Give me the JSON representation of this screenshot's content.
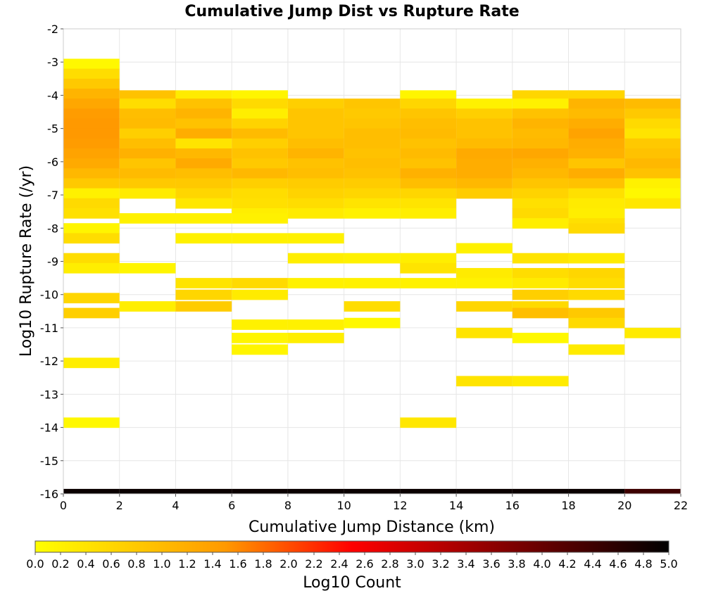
{
  "chart_data": {
    "type": "heatmap",
    "title": "Cumulative Jump Dist vs Rupture Rate",
    "xlabel": "Cumulative Jump Distance (km)",
    "ylabel": "Log10 Rupture Rate (/yr)",
    "xlim": [
      0,
      22
    ],
    "ylim": [
      -16,
      -2
    ],
    "x_ticks": [
      "0",
      "2",
      "4",
      "6",
      "8",
      "10",
      "12",
      "14",
      "16",
      "18",
      "20",
      "22"
    ],
    "y_ticks": [
      "-2",
      "-3",
      "-4",
      "-5",
      "-6",
      "-7",
      "-8",
      "-9",
      "-10",
      "-11",
      "-12",
      "-13",
      "-14",
      "-15",
      "-16"
    ],
    "grid": true,
    "x_bin_width": 2,
    "y_bin_height": 0.3,
    "colorbar": {
      "label": "Log10 Count",
      "range": [
        0,
        5
      ],
      "ticks": [
        "0.0",
        "0.2",
        "0.4",
        "0.6",
        "0.8",
        "1.0",
        "1.2",
        "1.4",
        "1.6",
        "1.8",
        "2.0",
        "2.2",
        "2.4",
        "2.6",
        "2.8",
        "3.0",
        "3.2",
        "3.4",
        "3.6",
        "3.8",
        "4.0",
        "4.2",
        "4.4",
        "4.6",
        "4.8",
        "5.0"
      ],
      "colors": [
        "#ffff00",
        "#ff9900",
        "#ff0000",
        "#000000"
      ]
    },
    "columns": [
      {
        "x": 1,
        "cells": [
          [
            -3.05,
            0.1
          ],
          [
            -3.35,
            0.5
          ],
          [
            -3.65,
            0.8
          ],
          [
            -3.95,
            1.1
          ],
          [
            -4.25,
            1.3
          ],
          [
            -4.55,
            1.45
          ],
          [
            -4.85,
            1.5
          ],
          [
            -5.15,
            1.5
          ],
          [
            -5.45,
            1.45
          ],
          [
            -5.75,
            1.35
          ],
          [
            -6.05,
            1.25
          ],
          [
            -6.35,
            1.05
          ],
          [
            -6.65,
            0.8
          ],
          [
            -6.95,
            0.2
          ],
          [
            -7.25,
            0.55
          ],
          [
            -7.55,
            0.45
          ],
          [
            -8.0,
            0.15
          ],
          [
            -8.3,
            0.5
          ],
          [
            -8.9,
            0.5
          ],
          [
            -9.2,
            0.25
          ],
          [
            -10.1,
            0.6
          ],
          [
            -10.55,
            0.7
          ],
          [
            -12.05,
            0.25
          ],
          [
            -13.85,
            0.1
          ]
        ]
      },
      {
        "x": 3,
        "cells": [
          [
            -4.0,
            0.9
          ],
          [
            -4.25,
            0.5
          ],
          [
            -4.55,
            0.95
          ],
          [
            -4.85,
            1.0
          ],
          [
            -5.15,
            0.7
          ],
          [
            -5.45,
            0.95
          ],
          [
            -5.75,
            1.15
          ],
          [
            -6.05,
            0.85
          ],
          [
            -6.35,
            1.0
          ],
          [
            -6.65,
            0.8
          ],
          [
            -6.95,
            0.3
          ],
          [
            -7.7,
            0.2
          ],
          [
            -9.2,
            0.15
          ],
          [
            -10.35,
            0.25
          ]
        ]
      },
      {
        "x": 5,
        "cells": [
          [
            -4.0,
            0.3
          ],
          [
            -4.25,
            0.9
          ],
          [
            -4.55,
            1.1
          ],
          [
            -4.85,
            0.9
          ],
          [
            -5.15,
            1.2
          ],
          [
            -5.45,
            0.4
          ],
          [
            -5.75,
            1.05
          ],
          [
            -6.05,
            1.25
          ],
          [
            -6.35,
            0.95
          ],
          [
            -6.65,
            0.8
          ],
          [
            -6.95,
            0.6
          ],
          [
            -7.25,
            0.35
          ],
          [
            -7.7,
            0.2
          ],
          [
            -8.3,
            0.2
          ],
          [
            -9.65,
            0.4
          ],
          [
            -10.0,
            0.6
          ],
          [
            -10.35,
            0.75
          ]
        ]
      },
      {
        "x": 7,
        "cells": [
          [
            -4.0,
            0.15
          ],
          [
            -4.25,
            0.55
          ],
          [
            -4.55,
            0.25
          ],
          [
            -4.85,
            0.65
          ],
          [
            -5.15,
            1.0
          ],
          [
            -5.45,
            0.7
          ],
          [
            -5.75,
            0.9
          ],
          [
            -6.05,
            0.8
          ],
          [
            -6.35,
            1.05
          ],
          [
            -6.65,
            0.7
          ],
          [
            -6.95,
            0.5
          ],
          [
            -7.25,
            0.45
          ],
          [
            -7.55,
            0.25
          ],
          [
            -7.7,
            0.2
          ],
          [
            -8.3,
            0.2
          ],
          [
            -9.65,
            0.55
          ],
          [
            -10.0,
            0.3
          ],
          [
            -10.9,
            0.2
          ],
          [
            -11.3,
            0.15
          ],
          [
            -11.65,
            0.15
          ]
        ]
      },
      {
        "x": 9,
        "cells": [
          [
            -4.25,
            0.7
          ],
          [
            -4.55,
            0.85
          ],
          [
            -4.85,
            0.85
          ],
          [
            -5.15,
            0.85
          ],
          [
            -5.45,
            0.95
          ],
          [
            -5.75,
            1.1
          ],
          [
            -6.05,
            0.9
          ],
          [
            -6.35,
            0.95
          ],
          [
            -6.65,
            0.75
          ],
          [
            -6.95,
            0.65
          ],
          [
            -7.25,
            0.5
          ],
          [
            -7.55,
            0.3
          ],
          [
            -8.3,
            0.2
          ],
          [
            -8.9,
            0.25
          ],
          [
            -9.65,
            0.2
          ],
          [
            -10.9,
            0.2
          ],
          [
            -11.3,
            0.25
          ]
        ]
      },
      {
        "x": 11,
        "cells": [
          [
            -4.25,
            0.85
          ],
          [
            -4.55,
            0.8
          ],
          [
            -4.85,
            0.85
          ],
          [
            -5.15,
            0.95
          ],
          [
            -5.45,
            0.95
          ],
          [
            -5.75,
            0.9
          ],
          [
            -6.05,
            0.95
          ],
          [
            -6.35,
            0.9
          ],
          [
            -6.65,
            0.75
          ],
          [
            -6.95,
            0.6
          ],
          [
            -7.25,
            0.4
          ],
          [
            -7.55,
            0.2
          ],
          [
            -8.9,
            0.2
          ],
          [
            -9.65,
            0.2
          ],
          [
            -10.35,
            0.5
          ],
          [
            -10.85,
            0.1
          ]
        ]
      },
      {
        "x": 13,
        "cells": [
          [
            -4.0,
            0.15
          ],
          [
            -4.25,
            0.6
          ],
          [
            -4.55,
            0.85
          ],
          [
            -4.85,
            0.95
          ],
          [
            -5.15,
            1.0
          ],
          [
            -5.45,
            0.9
          ],
          [
            -5.75,
            1.0
          ],
          [
            -6.05,
            0.9
          ],
          [
            -6.35,
            1.15
          ],
          [
            -6.65,
            0.95
          ],
          [
            -6.95,
            0.6
          ],
          [
            -7.25,
            0.4
          ],
          [
            -7.55,
            0.25
          ],
          [
            -8.9,
            0.25
          ],
          [
            -9.2,
            0.4
          ],
          [
            -9.65,
            0.2
          ],
          [
            -13.85,
            0.35
          ]
        ]
      },
      {
        "x": 15,
        "cells": [
          [
            -4.25,
            0.2
          ],
          [
            -4.55,
            0.7
          ],
          [
            -4.85,
            0.9
          ],
          [
            -5.15,
            0.9
          ],
          [
            -5.45,
            1.0
          ],
          [
            -5.75,
            1.25
          ],
          [
            -6.05,
            1.2
          ],
          [
            -6.35,
            1.2
          ],
          [
            -6.65,
            1.05
          ],
          [
            -6.95,
            0.75
          ],
          [
            -8.6,
            0.2
          ],
          [
            -9.35,
            0.3
          ],
          [
            -9.65,
            0.2
          ],
          [
            -10.35,
            0.6
          ],
          [
            -11.15,
            0.4
          ],
          [
            -12.6,
            0.4
          ]
        ]
      },
      {
        "x": 17,
        "cells": [
          [
            -4.0,
            0.6
          ],
          [
            -4.25,
            0.2
          ],
          [
            -4.55,
            0.9
          ],
          [
            -4.85,
            1.1
          ],
          [
            -5.15,
            1.0
          ],
          [
            -5.45,
            1.05
          ],
          [
            -5.75,
            1.3
          ],
          [
            -6.05,
            1.15
          ],
          [
            -6.35,
            1.05
          ],
          [
            -6.65,
            0.85
          ],
          [
            -6.95,
            0.65
          ],
          [
            -7.25,
            0.45
          ],
          [
            -7.55,
            0.55
          ],
          [
            -7.85,
            0.25
          ],
          [
            -8.9,
            0.4
          ],
          [
            -9.35,
            0.5
          ],
          [
            -9.65,
            0.3
          ],
          [
            -10.0,
            0.7
          ],
          [
            -10.35,
            0.55
          ],
          [
            -10.55,
            0.95
          ],
          [
            -11.3,
            0.1
          ],
          [
            -12.6,
            0.3
          ]
        ]
      },
      {
        "x": 19,
        "cells": [
          [
            -4.0,
            0.6
          ],
          [
            -4.25,
            1.1
          ],
          [
            -4.55,
            1.0
          ],
          [
            -4.85,
            1.2
          ],
          [
            -5.15,
            1.35
          ],
          [
            -5.45,
            1.2
          ],
          [
            -5.75,
            1.15
          ],
          [
            -6.05,
            0.85
          ],
          [
            -6.35,
            1.2
          ],
          [
            -6.65,
            0.9
          ],
          [
            -6.95,
            0.45
          ],
          [
            -7.25,
            0.3
          ],
          [
            -7.55,
            0.25
          ],
          [
            -7.85,
            0.45
          ],
          [
            -8.0,
            0.55
          ],
          [
            -8.9,
            0.3
          ],
          [
            -9.35,
            0.6
          ],
          [
            -9.65,
            0.5
          ],
          [
            -10.0,
            0.55
          ],
          [
            -10.55,
            0.8
          ],
          [
            -10.85,
            0.55
          ],
          [
            -11.65,
            0.3
          ]
        ]
      },
      {
        "x": 21,
        "cells": [
          [
            -4.25,
            1.0
          ],
          [
            -4.55,
            0.8
          ],
          [
            -4.85,
            0.55
          ],
          [
            -5.15,
            0.4
          ],
          [
            -5.45,
            0.8
          ],
          [
            -5.75,
            0.9
          ],
          [
            -6.05,
            1.05
          ],
          [
            -6.35,
            0.9
          ],
          [
            -6.65,
            0.2
          ],
          [
            -6.95,
            0.1
          ],
          [
            -7.25,
            0.35
          ],
          [
            -11.15,
            0.3
          ]
        ]
      }
    ],
    "floor_row": {
      "y_range": [
        -16,
        -15.85
      ],
      "values": [
        4.9,
        4.9,
        4.9,
        4.9,
        4.9,
        4.9,
        4.9,
        4.9,
        4.9,
        4.9,
        4.4
      ]
    }
  }
}
